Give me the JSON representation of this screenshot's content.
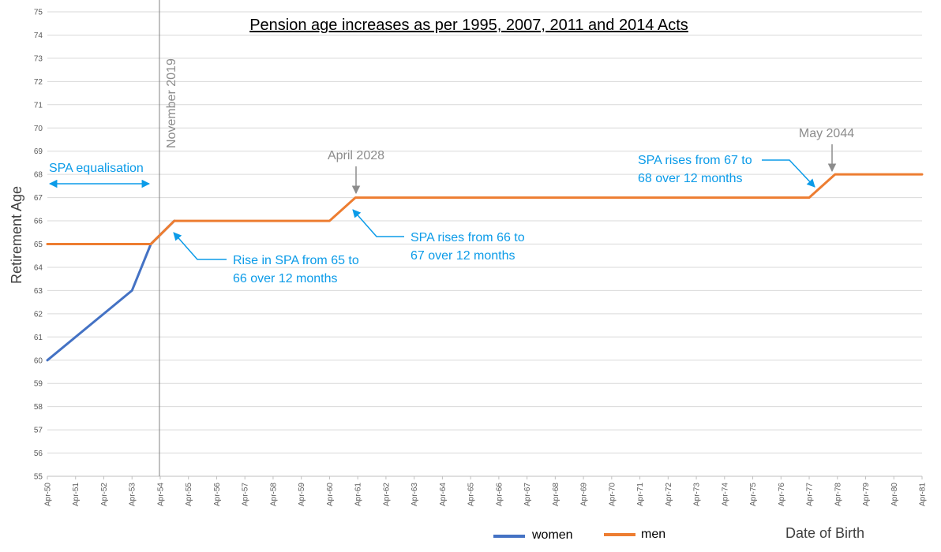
{
  "chart_data": {
    "type": "line",
    "title": "Pension age increases as per 1995, 2007, 2011 and 2014 Acts",
    "xlabel": "Date of Birth",
    "ylabel": "Retirement Age",
    "ylim": [
      55,
      75
    ],
    "yticks": [
      "55",
      "56",
      "57",
      "58",
      "59",
      "60",
      "61",
      "62",
      "63",
      "64",
      "65",
      "66",
      "67",
      "68",
      "69",
      "70",
      "71",
      "72",
      "73",
      "74",
      "75"
    ],
    "xticks": [
      "Apr-50",
      "Apr-51",
      "Apr-52",
      "Apr-53",
      "Apr-54",
      "Apr-55",
      "Apr-56",
      "Apr-57",
      "Apr-58",
      "Apr-59",
      "Apr-60",
      "Apr-61",
      "Apr-62",
      "Apr-63",
      "Apr-64",
      "Apr-65",
      "Apr-66",
      "Apr-67",
      "Apr-68",
      "Apr-69",
      "Apr-70",
      "Apr-71",
      "Apr-72",
      "Apr-73",
      "Apr-74",
      "Apr-75",
      "Apr-76",
      "Apr-77",
      "Apr-78",
      "Apr-79",
      "Apr-80",
      "Apr-81"
    ],
    "grid": true,
    "legend_position": "bottom",
    "series": [
      {
        "name": "women",
        "color": "#4472c4",
        "points": [
          {
            "x": "1950-04",
            "y": 60.0
          },
          {
            "x": "1953-04",
            "y": 63.0
          },
          {
            "x": "1953-12",
            "y": 65.0
          },
          {
            "x": "1954-10",
            "y": 66.0
          }
        ]
      },
      {
        "name": "men",
        "color": "#ed7d31",
        "points": [
          {
            "x": "1950-04",
            "y": 65.0
          },
          {
            "x": "1953-12",
            "y": 65.0
          },
          {
            "x": "1954-10",
            "y": 66.0
          },
          {
            "x": "1960-04",
            "y": 66.0
          },
          {
            "x": "1961-03",
            "y": 67.0
          },
          {
            "x": "1977-04",
            "y": 67.0
          },
          {
            "x": "1978-03",
            "y": 68.0
          },
          {
            "x": "1981-04",
            "y": 68.0
          }
        ]
      }
    ],
    "vertical_markers": [
      {
        "x": "1954-04",
        "label": "November 2019"
      }
    ],
    "annotations": [
      {
        "id": "spa-eq",
        "text": [
          "SPA equalisation"
        ],
        "color": "#0b9be8"
      },
      {
        "id": "rise-65-66",
        "text": [
          "Rise in SPA from 65 to",
          "66 over 12 months"
        ],
        "color": "#0b9be8"
      },
      {
        "id": "rise-66-67",
        "text": [
          "SPA rises from 66 to",
          "67 over 12 months"
        ],
        "color": "#0b9be8"
      },
      {
        "id": "rise-67-68",
        "text": [
          "SPA rises from 67 to",
          "68 over 12 months"
        ],
        "color": "#0b9be8"
      },
      {
        "id": "april-2028",
        "text": [
          "April 2028"
        ],
        "color": "#8c8c8c"
      },
      {
        "id": "may-2044",
        "text": [
          "May 2044"
        ],
        "color": "#8c8c8c"
      }
    ]
  }
}
